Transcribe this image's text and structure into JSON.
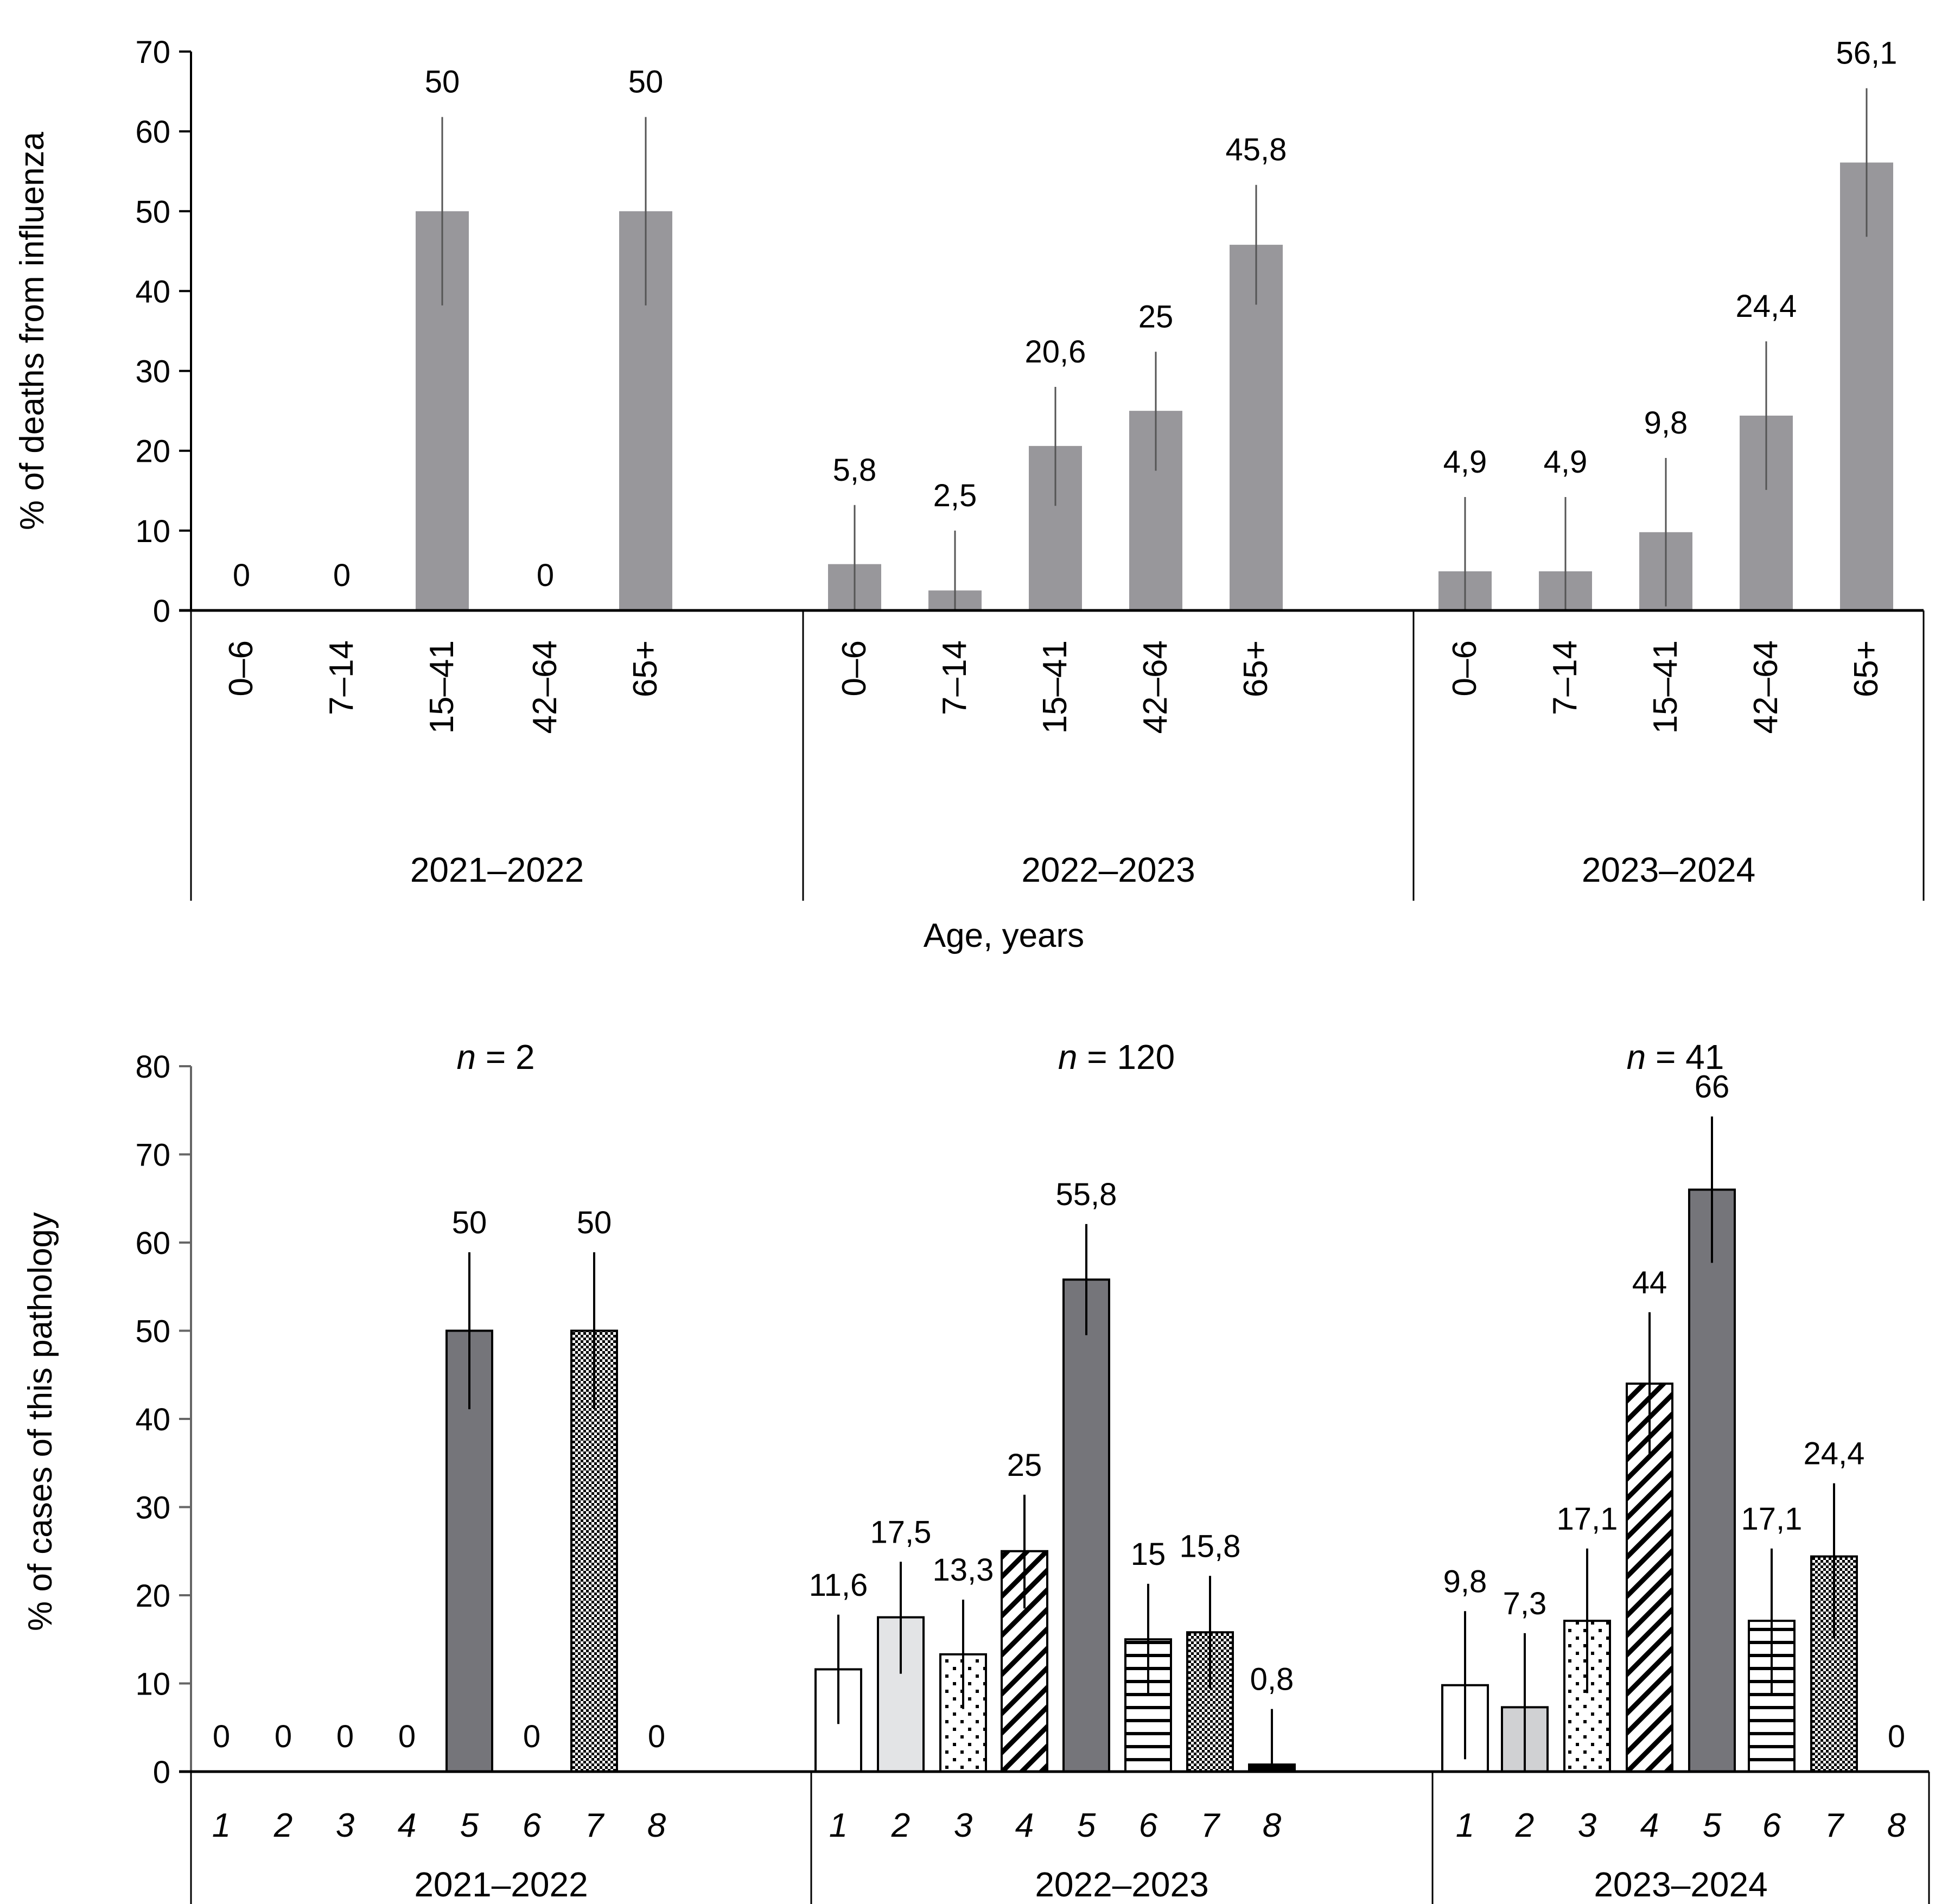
{
  "chart_data": [
    {
      "type": "bar",
      "title": "",
      "ylabel": "% of deaths from influenza",
      "xlabel": "Age, years",
      "ylim": [
        0,
        70
      ],
      "yticks": [
        "0",
        "10",
        "20",
        "30",
        "40",
        "50",
        "60",
        "70"
      ],
      "grid": false,
      "bar_color": "#98979b",
      "error_color": "#555555",
      "groups": [
        {
          "label": "2021–2022",
          "categories": [
            "0–6",
            "7–14",
            "15–41",
            "42–64",
            "65+"
          ],
          "values": [
            0,
            0,
            50,
            0,
            50
          ],
          "value_labels": [
            "0",
            "0",
            "50",
            "0",
            "50"
          ],
          "error_low": [
            null,
            null,
            38.2,
            null,
            38.2
          ],
          "error_high": [
            null,
            null,
            61.8,
            null,
            61.8
          ]
        },
        {
          "label": "2022–2023",
          "categories": [
            "0–6",
            "7–14",
            "15–41",
            "42–64",
            "65+"
          ],
          "values": [
            5.8,
            2.5,
            20.6,
            25,
            45.8
          ],
          "value_labels": [
            "5,8",
            "2,5",
            "20,6",
            "25",
            "45,8"
          ],
          "error_low": [
            0,
            0,
            13.1,
            17.5,
            38.3
          ],
          "error_high": [
            13.2,
            10.0,
            28.0,
            32.4,
            53.3
          ]
        },
        {
          "label": "2023–2024",
          "categories": [
            "0–6",
            "7–14",
            "15–41",
            "42–64",
            "65+"
          ],
          "values": [
            4.9,
            4.9,
            9.8,
            24.4,
            56.1
          ],
          "value_labels": [
            "4,9",
            "4,9",
            "9,8",
            "24,4",
            "56,1"
          ],
          "error_low": [
            0,
            0,
            0.5,
            15.1,
            46.8
          ],
          "error_high": [
            14.2,
            14.2,
            19.1,
            33.7,
            65.4
          ]
        }
      ]
    },
    {
      "type": "bar",
      "title": "",
      "ylabel": "% of cases of this pathology",
      "xlabel": "",
      "ylim": [
        0,
        80
      ],
      "yticks": [
        "0",
        "10",
        "20",
        "30",
        "40",
        "50",
        "60",
        "70",
        "80"
      ],
      "grid": false,
      "category_patterns": [
        "white",
        "light-gray",
        "dots",
        "diagonal-stripes",
        "dark-gray",
        "horizontal-lines",
        "checker",
        "black"
      ],
      "groups": [
        {
          "label": "2021–2022",
          "n_label": "= 2",
          "categories": [
            "1",
            "2",
            "3",
            "4",
            "5",
            "6",
            "7",
            "8"
          ],
          "values": [
            0,
            0,
            0,
            0,
            50,
            0,
            50,
            0
          ],
          "value_labels": [
            "0",
            "0",
            "0",
            "0",
            "50",
            "0",
            "50",
            "0"
          ],
          "error_low": [
            null,
            null,
            null,
            null,
            41.1,
            null,
            41.1,
            null
          ],
          "error_high": [
            null,
            null,
            null,
            null,
            58.9,
            null,
            58.9,
            null
          ]
        },
        {
          "label": "2022–2023",
          "n_label": "= 120",
          "categories": [
            "1",
            "2",
            "3",
            "4",
            "5",
            "6",
            "7",
            "8"
          ],
          "values": [
            11.6,
            17.5,
            13.3,
            25,
            55.8,
            15,
            15.8,
            0.8
          ],
          "value_labels": [
            "11,6",
            "17,5",
            "13,3",
            "25",
            "55,8",
            "15",
            "15,8",
            "0,8"
          ],
          "error_low": [
            5.4,
            11.1,
            7.1,
            18.5,
            49.5,
            8.7,
            9.4,
            0
          ],
          "error_high": [
            17.8,
            23.8,
            19.5,
            31.4,
            62.1,
            21.3,
            22.2,
            7.1
          ]
        },
        {
          "label": "2023–2024",
          "n_label": "= 41",
          "categories": [
            "1",
            "2",
            "3",
            "4",
            "5",
            "6",
            "7",
            "8"
          ],
          "values": [
            9.8,
            7.3,
            17.1,
            44,
            66,
            17.1,
            24.4,
            0
          ],
          "value_labels": [
            "9,8",
            "7,3",
            "17,1",
            "44",
            "66",
            "17,1",
            "24,4",
            "0"
          ],
          "error_low": [
            1.4,
            0,
            8.9,
            35.9,
            57.7,
            8.9,
            15.1,
            null
          ],
          "error_high": [
            18.2,
            15.7,
            25.3,
            52.1,
            74.3,
            25.3,
            32.7,
            null
          ]
        }
      ],
      "n_prefix": "n"
    }
  ]
}
